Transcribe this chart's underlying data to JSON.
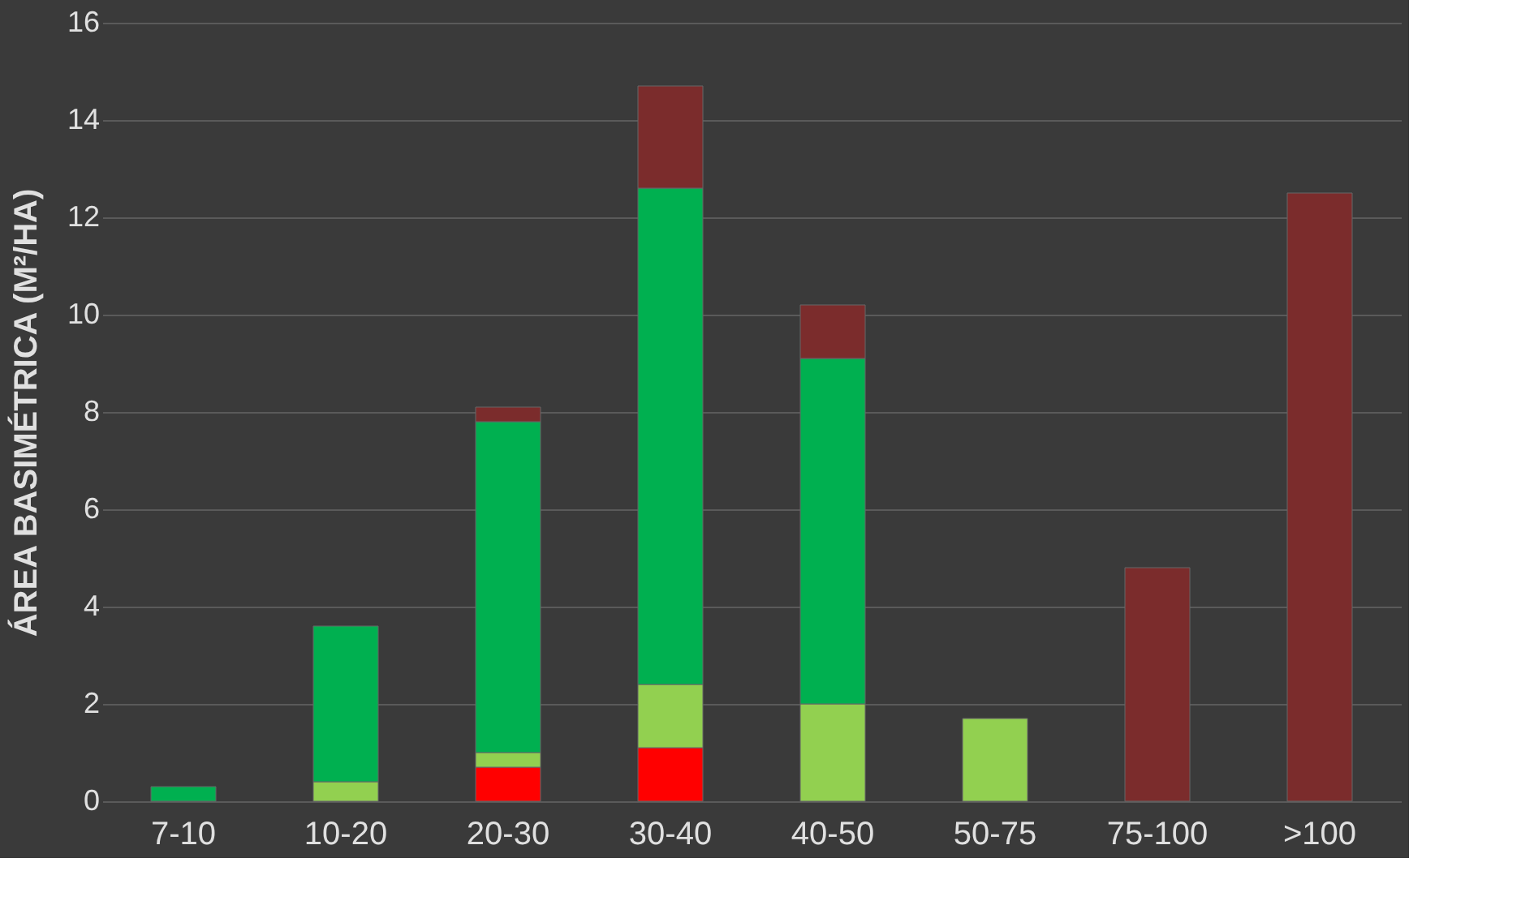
{
  "chart_data": {
    "type": "bar",
    "stacked": true,
    "ylabel": "ÁREA BASIMÉTRICA (M²/HA)",
    "categories": [
      "7-10",
      "10-20",
      "20-30",
      "30-40",
      "40-50",
      "50-75",
      "75-100",
      ">100"
    ],
    "series": [
      {
        "color": "#ff0000",
        "values": [
          null,
          null,
          0.7,
          1.1,
          null,
          null,
          null,
          null
        ]
      },
      {
        "color": "#92d050",
        "values": [
          null,
          0.4,
          0.3,
          1.3,
          2.0,
          1.7,
          null,
          null
        ]
      },
      {
        "color": "#00b050",
        "values": [
          0.3,
          3.2,
          6.8,
          10.2,
          7.1,
          null,
          null,
          null
        ]
      },
      {
        "color": "#7b2c2c",
        "values": [
          null,
          null,
          0.3,
          2.1,
          1.1,
          null,
          4.8,
          12.5
        ]
      }
    ],
    "ylim": [
      0,
      16
    ],
    "yticks": [
      0,
      2,
      4,
      6,
      8,
      10,
      12,
      14,
      16
    ],
    "grid": "y",
    "legend": false
  }
}
